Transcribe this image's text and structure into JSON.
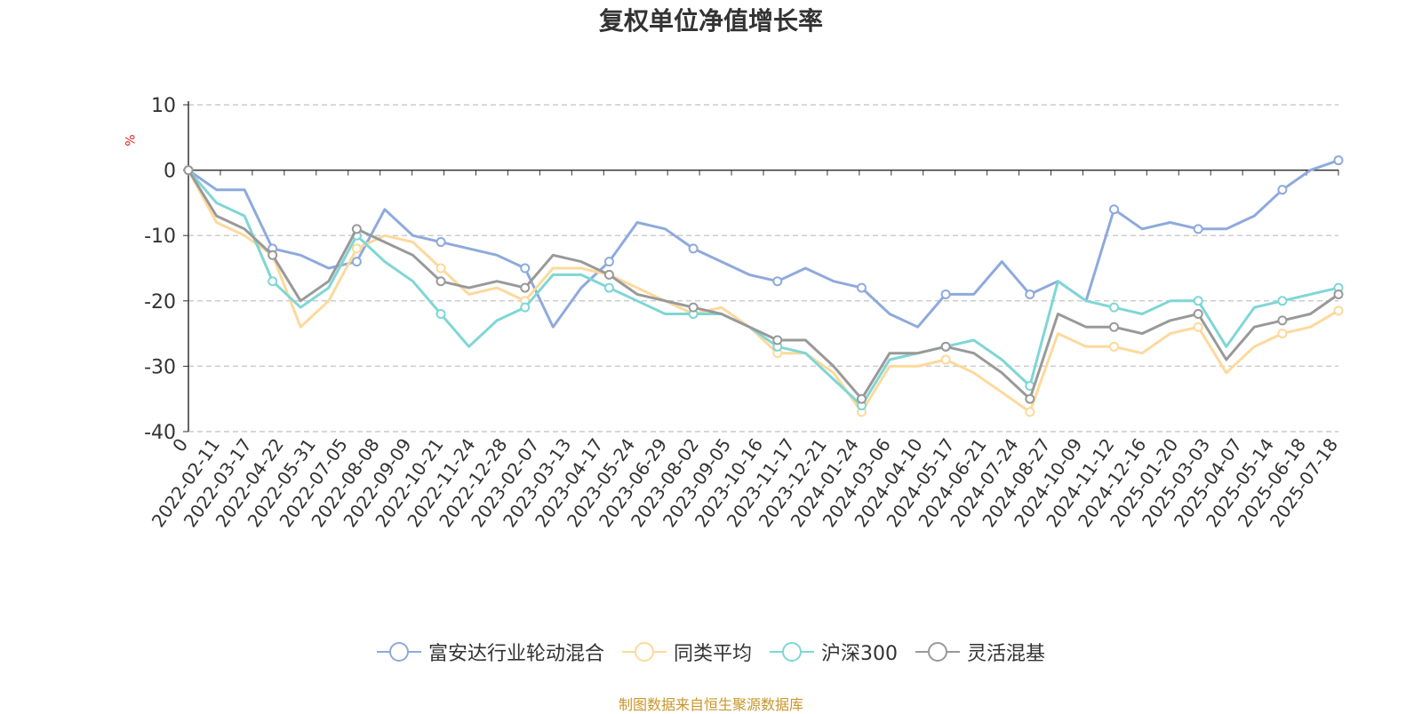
{
  "chart_data": {
    "type": "line",
    "title": "复权单位净值增长率",
    "ylabel": "%",
    "ylim": [
      -40,
      10
    ],
    "yticks": [
      10,
      0,
      -10,
      -20,
      -30,
      -40
    ],
    "grid": true,
    "legend_position": "bottom",
    "x_tick_labels": [
      "0",
      "2022-02-11",
      "2022-03-17",
      "2022-04-22",
      "2022-05-31",
      "2022-07-05",
      "2022-08-08",
      "2022-09-09",
      "2022-10-21",
      "2022-11-24",
      "2022-12-28",
      "2023-02-07",
      "2023-03-13",
      "2023-04-17",
      "2023-05-24",
      "2023-06-29",
      "2023-08-02",
      "2023-09-05",
      "2023-10-16",
      "2023-11-17",
      "2023-12-21",
      "2024-01-24",
      "2024-03-06",
      "2024-04-10",
      "2024-05-17",
      "2024-06-21",
      "2024-07-24",
      "2024-08-27",
      "2024-10-09",
      "2024-11-12",
      "2024-12-16",
      "2025-01-20",
      "2025-03-03",
      "2025-04-07",
      "2025-05-14",
      "2025-06-18",
      "2025-07-18"
    ],
    "series": [
      {
        "name": "富安达行业轮动混合",
        "color": "#8eaadc",
        "values": [
          0,
          -3,
          -3,
          -12,
          -13,
          -15,
          -14,
          -6,
          -10,
          -11,
          -12,
          -13,
          -15,
          -24,
          -18,
          -14,
          -8,
          -9,
          -12,
          -14,
          -16,
          -17,
          -15,
          -17,
          -18,
          -22,
          -24,
          -19,
          -19,
          -14,
          -19,
          -17,
          -20,
          -6,
          -9,
          -8,
          -9,
          -9,
          -7,
          -3,
          0,
          1.5
        ]
      },
      {
        "name": "同类平均",
        "color": "#fdd99b",
        "values": [
          0,
          -8,
          -10,
          -13,
          -24,
          -20,
          -12,
          -10,
          -11,
          -15,
          -19,
          -18,
          -20,
          -15,
          -15,
          -16,
          -18,
          -20,
          -22,
          -21,
          -24,
          -28,
          -28,
          -31,
          -37,
          -30,
          -30,
          -29,
          -31,
          -34,
          -37,
          -25,
          -27,
          -27,
          -28,
          -25,
          -24,
          -31,
          -27,
          -25,
          -24,
          -21.5
        ]
      },
      {
        "name": "沪深300",
        "color": "#7fd6d6",
        "values": [
          0,
          -5,
          -7,
          -17,
          -21,
          -18,
          -10,
          -14,
          -17,
          -22,
          -27,
          -23,
          -21,
          -16,
          -16,
          -18,
          -20,
          -22,
          -22,
          -22,
          -24,
          -27,
          -28,
          -32,
          -36,
          -29,
          -28,
          -27,
          -26,
          -29,
          -33,
          -17,
          -20,
          -21,
          -22,
          -20,
          -20,
          -27,
          -21,
          -20,
          -19,
          -18
        ]
      },
      {
        "name": "灵活混基",
        "color": "#999999",
        "values": [
          0,
          -7,
          -9,
          -13,
          -20,
          -17,
          -9,
          -11,
          -13,
          -17,
          -18,
          -17,
          -18,
          -13,
          -14,
          -16,
          -19,
          -20,
          -21,
          -22,
          -24,
          -26,
          -26,
          -30,
          -35,
          -28,
          -28,
          -27,
          -28,
          -31,
          -35,
          -22,
          -24,
          -24,
          -25,
          -23,
          -22,
          -29,
          -24,
          -23,
          -22,
          -19
        ]
      }
    ]
  },
  "legend": [
    {
      "label": "富安达行业轮动混合",
      "color": "#8eaadc"
    },
    {
      "label": "同类平均",
      "color": "#fdd99b"
    },
    {
      "label": "沪深300",
      "color": "#7fd6d6"
    },
    {
      "label": "灵活混基",
      "color": "#999999"
    }
  ],
  "footer": "制图数据来自恒生聚源数据库"
}
